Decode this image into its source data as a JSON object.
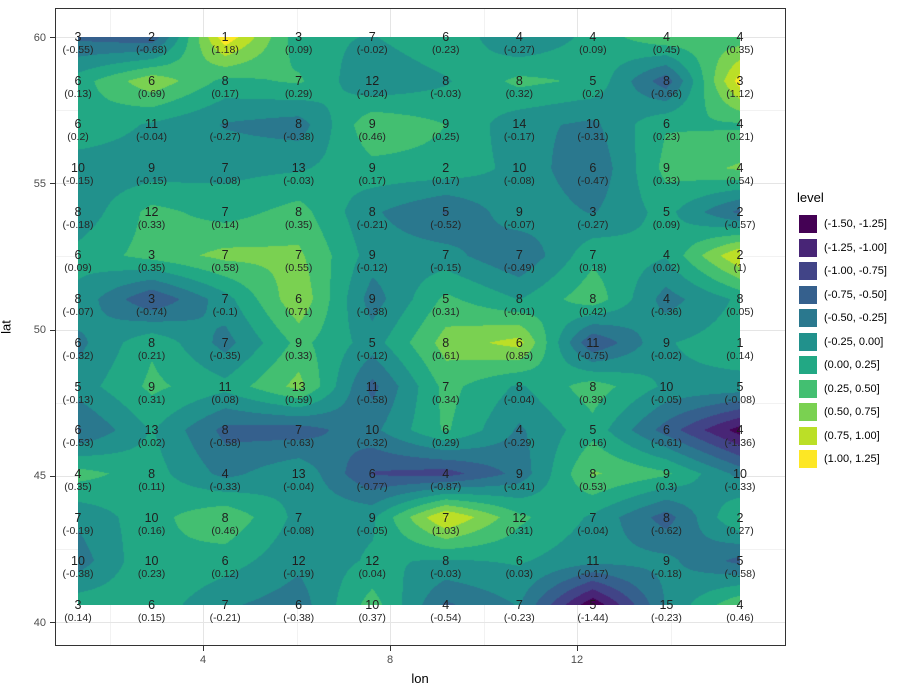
{
  "chart_data": {
    "type": "heatmap",
    "subtype": "filled-contour-with-labels",
    "title": "",
    "xlabel": "lon",
    "ylabel": "lat",
    "x_ticks": [
      4,
      8,
      12
    ],
    "y_ticks": [
      60,
      55,
      50,
      45,
      40
    ],
    "xlim": [
      0.85,
      15.95
    ],
    "ylim": [
      39.75,
      60.8
    ],
    "lon": [
      1.3,
      2.9,
      4.5,
      6.0,
      7.6,
      9.2,
      10.7,
      12.3,
      13.9,
      15.4
    ],
    "lat": [
      60.0,
      58.5,
      57.0,
      55.5,
      54.0,
      52.5,
      51.0,
      49.5,
      48.0,
      46.5,
      45.1,
      43.6,
      42.1,
      40.6
    ],
    "counts": [
      [
        3,
        2,
        1,
        3,
        7,
        6,
        4,
        4,
        4,
        4
      ],
      [
        6,
        6,
        8,
        7,
        12,
        8,
        8,
        5,
        8,
        3
      ],
      [
        6,
        11,
        9,
        8,
        9,
        9,
        14,
        10,
        6,
        4
      ],
      [
        10,
        9,
        7,
        13,
        9,
        2,
        10,
        6,
        9,
        4
      ],
      [
        8,
        12,
        7,
        8,
        8,
        5,
        9,
        3,
        5,
        2
      ],
      [
        6,
        3,
        7,
        7,
        9,
        7,
        7,
        7,
        4,
        2
      ],
      [
        8,
        3,
        7,
        6,
        9,
        5,
        8,
        8,
        4,
        8
      ],
      [
        6,
        8,
        7,
        9,
        5,
        8,
        6,
        11,
        9,
        1
      ],
      [
        5,
        9,
        11,
        13,
        11,
        7,
        8,
        8,
        10,
        5
      ],
      [
        6,
        13,
        8,
        7,
        10,
        6,
        4,
        5,
        6,
        4
      ],
      [
        4,
        8,
        4,
        13,
        6,
        4,
        9,
        8,
        9,
        10
      ],
      [
        7,
        10,
        8,
        7,
        9,
        7,
        12,
        7,
        8,
        2
      ],
      [
        10,
        10,
        6,
        12,
        12,
        8,
        6,
        11,
        9,
        5
      ],
      [
        3,
        6,
        7,
        6,
        10,
        4,
        7,
        5,
        15,
        4
      ]
    ],
    "values": [
      [
        -0.55,
        -0.68,
        1.18,
        0.09,
        -0.02,
        0.23,
        -0.27,
        0.09,
        0.45,
        0.35
      ],
      [
        0.13,
        0.69,
        0.17,
        0.29,
        -0.24,
        -0.03,
        0.32,
        0.2,
        -0.66,
        1.12
      ],
      [
        0.2,
        -0.04,
        -0.27,
        -0.38,
        0.46,
        0.25,
        -0.17,
        -0.31,
        0.23,
        0.21
      ],
      [
        -0.15,
        -0.15,
        -0.08,
        -0.03,
        0.17,
        0.17,
        -0.08,
        -0.47,
        0.33,
        0.54
      ],
      [
        -0.18,
        0.33,
        0.14,
        0.35,
        -0.21,
        -0.52,
        -0.07,
        -0.27,
        0.09,
        -0.57
      ],
      [
        0.09,
        0.35,
        0.58,
        0.55,
        -0.12,
        -0.15,
        -0.49,
        0.18,
        0.02,
        1
      ],
      [
        -0.07,
        -0.74,
        -0.1,
        0.71,
        -0.38,
        0.31,
        -0.01,
        0.42,
        -0.36,
        0.05
      ],
      [
        -0.32,
        0.21,
        -0.35,
        0.33,
        -0.12,
        0.61,
        0.85,
        -0.75,
        -0.02,
        0.14
      ],
      [
        -0.13,
        0.31,
        0.08,
        0.59,
        -0.58,
        0.34,
        -0.04,
        0.39,
        -0.05,
        -0.08
      ],
      [
        -0.53,
        0.02,
        -0.58,
        -0.63,
        -0.32,
        0.29,
        -0.29,
        0.16,
        -0.61,
        -1.36
      ],
      [
        0.35,
        0.11,
        -0.33,
        -0.04,
        -0.77,
        -0.87,
        -0.41,
        0.53,
        0.3,
        -0.33
      ],
      [
        -0.19,
        0.16,
        0.46,
        -0.08,
        -0.05,
        1.03,
        0.31,
        -0.04,
        -0.62,
        0.27
      ],
      [
        -0.38,
        0.23,
        0.12,
        -0.19,
        0.04,
        -0.03,
        0.03,
        -0.17,
        -0.18,
        -0.58
      ],
      [
        0.14,
        0.15,
        -0.21,
        -0.38,
        0.37,
        -0.54,
        -0.23,
        -1.44,
        -0.23,
        0.46
      ]
    ],
    "bin_breaks": [
      -1.5,
      -1.25,
      -1.0,
      -0.75,
      -0.5,
      -0.25,
      0,
      0.25,
      0.5,
      0.75,
      1.0,
      1.25
    ],
    "legend_title": "level",
    "legend_position": "right",
    "grid_on": true,
    "bins": [
      {
        "label": "(-1.50, -1.25]",
        "color": "#440154"
      },
      {
        "label": "(-1.25, -1.00]",
        "color": "#482576"
      },
      {
        "label": "(-1.00, -0.75]",
        "color": "#414487"
      },
      {
        "label": "(-0.75, -0.50]",
        "color": "#35608D"
      },
      {
        "label": "(-0.50, -0.25]",
        "color": "#2A788E"
      },
      {
        "label": "(-0.25, 0.00]",
        "color": "#21918C"
      },
      {
        "label": "(0.00, 0.25]",
        "color": "#22A884"
      },
      {
        "label": "(0.25, 0.50]",
        "color": "#43BF71"
      },
      {
        "label": "(0.50, 0.75]",
        "color": "#7AD151"
      },
      {
        "label": "(0.75, 1.00]",
        "color": "#BBDF27"
      },
      {
        "label": "(1.00, 1.25]",
        "color": "#FDE725"
      }
    ]
  }
}
